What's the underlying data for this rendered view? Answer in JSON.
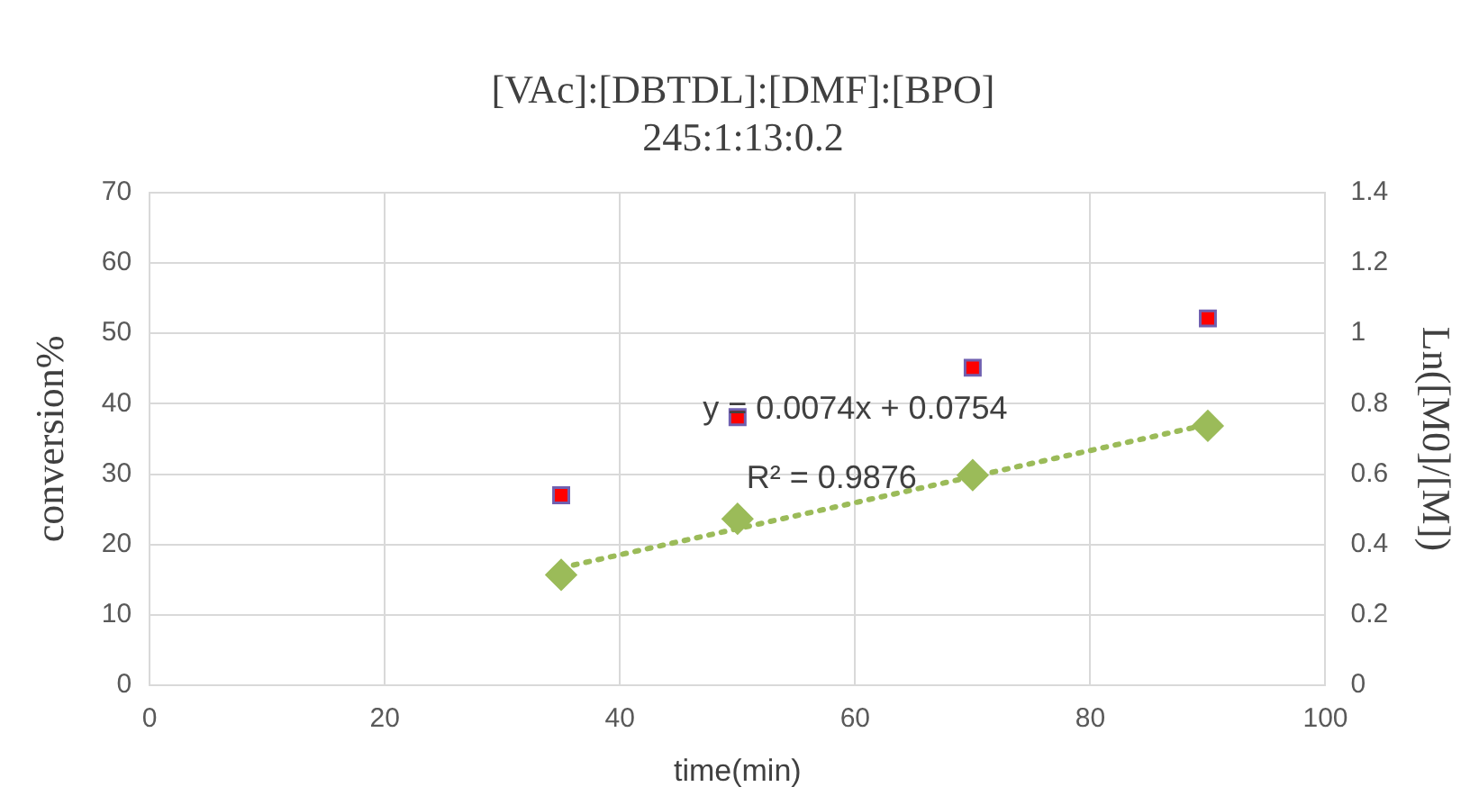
{
  "chart_data": {
    "type": "scatter",
    "title": [
      "[VAc]:[DBTDL]:[DMF]:[BPO]",
      "245:1:13:0.2"
    ],
    "xlabel": "time(min)",
    "ylabel": "conversion%",
    "y2label": "Ln([M0]/[M])",
    "x": [
      35,
      50,
      70,
      90
    ],
    "series": [
      {
        "type": "scatter",
        "color": "#ff0000",
        "marker": "square",
        "values": [
          27,
          38.1,
          45.1,
          52.1
        ]
      },
      {
        "type": "scatter",
        "color": "#9bbb59",
        "marker": "diamond",
        "axis": "y2",
        "values": [
          0.314,
          0.473,
          0.597,
          0.737
        ]
      },
      {
        "type": "line",
        "color": "#9bbb59",
        "line_style": "dotted",
        "marker": "none",
        "axis": "y2",
        "x": [
          35,
          90
        ],
        "values": [
          0.334,
          0.741
        ]
      }
    ],
    "xlim": [
      0,
      100
    ],
    "xticks": [
      0,
      20,
      40,
      60,
      80,
      100
    ],
    "ylim": [
      0,
      70
    ],
    "yticks": [
      0,
      10,
      20,
      30,
      40,
      50,
      60,
      70
    ],
    "y2lim": [
      0,
      1.4
    ],
    "y2ticks": [
      0,
      0.2,
      0.4,
      0.6,
      0.8,
      1,
      1.2,
      1.4
    ],
    "annotations": [
      "y = 0.0074x + 0.0754",
      "R² = 0.9876"
    ],
    "grid": true,
    "legend": false
  }
}
